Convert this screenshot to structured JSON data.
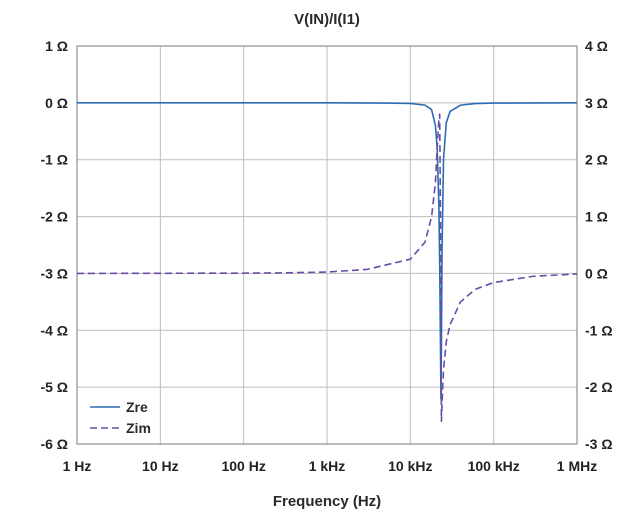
{
  "chart_data": {
    "type": "line",
    "title": "V(IN)/I(I1)",
    "xlabel": "Frequency (Hz)",
    "x_scale": "log",
    "xlim": [
      1,
      1000000
    ],
    "x_ticks": [
      1,
      10,
      100,
      1000,
      10000,
      100000,
      1000000
    ],
    "x_tick_labels": [
      "1 Hz",
      "10 Hz",
      "100 Hz",
      "1 kHz",
      "10 kHz",
      "100 kHz",
      "1 MHz"
    ],
    "y_left": {
      "lim": [
        -6,
        1
      ],
      "ticks": [
        1,
        0,
        -1,
        -2,
        -3,
        -4,
        -5,
        -6
      ],
      "tick_labels": [
        "1 Ω",
        "0 Ω",
        "-1 Ω",
        "-2 Ω",
        "-3 Ω",
        "-4 Ω",
        "-5 Ω",
        "-6 Ω"
      ]
    },
    "y_right": {
      "lim": [
        -3,
        4
      ],
      "ticks": [
        4,
        3,
        2,
        1,
        0,
        -1,
        -2,
        -3
      ],
      "tick_labels": [
        "4 Ω",
        "3 Ω",
        "2 Ω",
        "1 Ω",
        "0 Ω",
        "-1 Ω",
        "-2 Ω",
        "-3 Ω"
      ]
    },
    "grid": true,
    "legend_position": "bottom-left",
    "series": [
      {
        "name": "Zre",
        "axis": "left",
        "color": "#2b6cb0",
        "style": "solid",
        "x": [
          1,
          100,
          1000,
          5000,
          10000,
          15000,
          18000,
          20000,
          21000,
          22000,
          22500,
          23000,
          23300,
          23600,
          24000,
          25000,
          27000,
          30000,
          40000,
          60000,
          100000,
          1000000
        ],
        "y": [
          0,
          0,
          0,
          -0.003,
          -0.01,
          -0.04,
          -0.12,
          -0.4,
          -0.8,
          -1.8,
          -2.8,
          -4.3,
          -5.2,
          -4.3,
          -2.6,
          -1.0,
          -0.35,
          -0.15,
          -0.04,
          -0.012,
          -0.004,
          0
        ]
      },
      {
        "name": "Zim",
        "axis": "right",
        "color": "#6a4ba8",
        "style": "dashed",
        "x": [
          1,
          100,
          300,
          1000,
          3000,
          10000,
          15000,
          18000,
          20000,
          21000,
          22000,
          22500,
          23000,
          23300,
          23600,
          24000,
          25000,
          27000,
          30000,
          40000,
          60000,
          100000,
          300000,
          1000000
        ],
        "y": [
          0,
          0.005,
          0.01,
          0.025,
          0.07,
          0.25,
          0.55,
          1.0,
          1.6,
          2.2,
          2.7,
          2.8,
          1.0,
          -1.0,
          -2.6,
          -2.3,
          -1.7,
          -1.2,
          -0.9,
          -0.5,
          -0.28,
          -0.16,
          -0.05,
          -0.01
        ]
      }
    ]
  }
}
